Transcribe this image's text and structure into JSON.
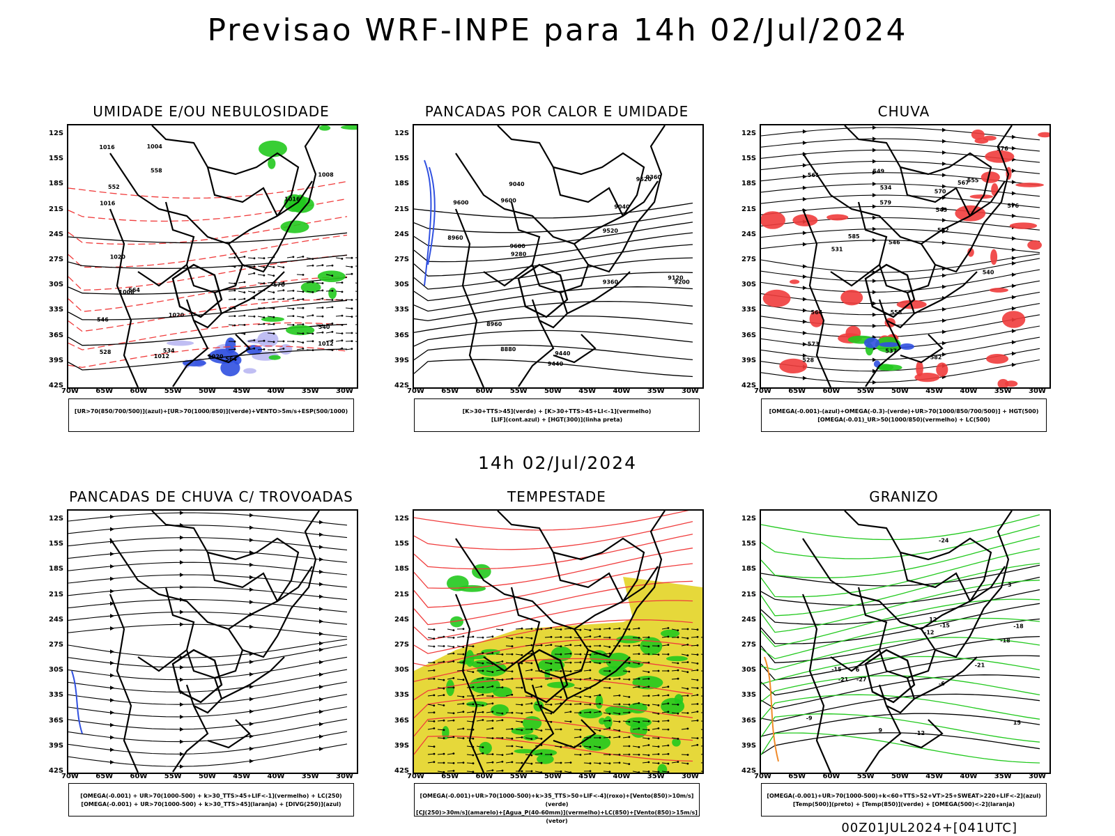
{
  "title": "Previsao WRF-INPE  para 14h 02/Jul/2024",
  "middle_label": "14h 02/Jul/2024",
  "footer_tag": "00Z01JUL2024+[041UTC]",
  "lat_ticks": [
    "12S",
    "15S",
    "18S",
    "21S",
    "24S",
    "27S",
    "30S",
    "33S",
    "36S",
    "39S",
    "42S"
  ],
  "lon_ticks": [
    "70W",
    "65W",
    "60W",
    "55W",
    "50W",
    "45W",
    "40W",
    "35W",
    "30W"
  ],
  "panels": [
    {
      "title": "UMIDADE E/OU NEBULOSIDADE",
      "legend": [
        "[UR>70(850/700/500)](azul)+[UR>70(1000/850)](verde)+VENTO>5m/s+ESP(500/1000)"
      ],
      "contour_labels": [
        "1016",
        "1020",
        "1016",
        "1020",
        "1016",
        "1012",
        "1012",
        "1008",
        "1004",
        "1008",
        "1020",
        "564",
        "570",
        "558",
        "552",
        "546",
        "540",
        "534",
        "528",
        "564"
      ]
    },
    {
      "title": "PANCADAS POR CALOR E UMIDADE",
      "legend": [
        "[K>30+TTS>45](verde) + [K>30+TTS>45+LI<-1](vermelho)",
        "[LIF](cont.azul) + [HGT(300)](linha preta)"
      ],
      "contour_labels": [
        "9600",
        "9600",
        "9520",
        "9440",
        "9520",
        "9440",
        "9360",
        "9280",
        "9360",
        "9200",
        "9120",
        "9040",
        "9040",
        "8960",
        "8960",
        "8880",
        "9600"
      ]
    },
    {
      "title": "CHUVA",
      "legend": [
        "[OMEGA(-0.001)-(azul)+OMEGA(-0.3)-(verde)+UR>70(1000/850/700/500)] + HGT(500)",
        "[OMEGA(-0.01)_UR>50(1000/850)(vermelho) + LC(500)"
      ],
      "contour_labels": [
        "582",
        "579",
        "576",
        "576",
        "573",
        "570",
        "567",
        "564",
        "561",
        "558",
        "555",
        "552",
        "549",
        "546",
        "543",
        "540",
        "537",
        "534",
        "531",
        "528",
        "585"
      ]
    },
    {
      "title": "PANCADAS DE CHUVA C/ TROVOADAS",
      "legend": [
        "[OMEGA(-0.001) + UR>70(1000-500) + k>30_TTS>45+LIF<-1](vermelho) + LC(250)",
        "[OMEGA(-0.001) + UR>70(1000-500) + k>30_TTS>45](laranja) + [DIVG(250)](azul)"
      ],
      "contour_labels": []
    },
    {
      "title": "TEMPESTADE",
      "legend": [
        "[OMEGA(-0.001)+UR>70(1000-500)+k>35_TTS>50+LIF<-4](roxo)+[Vento(850)>10m/s](verde)",
        "[CJ(250)>30m/s](amarelo)+[Agua_P(40-60mm)](vermelho)+LC(850)+[Vento(850)>15m/s](vetor)"
      ],
      "contour_labels": []
    },
    {
      "title": "GRANIZO",
      "legend": [
        "[OMEGA(-0.001)+UR>70(1000-500)+k<60+TTS>52+VT>25+SWEAT>220+LIF<-2](azul)",
        "[Temp(500)](preto) + [Temp(850)](verde) + [OMEGA(500)<-2](laranja)"
      ],
      "contour_labels": [
        "-6",
        "-9",
        "-12",
        "-15",
        "-18",
        "-21",
        "-24",
        "-27",
        "12",
        "15",
        "9",
        "6",
        "3",
        "-12",
        "-15",
        "-18",
        "-21"
      ]
    }
  ],
  "colors": {
    "blue": "#3050e0",
    "light_blue": "#b9b7f2",
    "green": "#22c91e",
    "red": "#f03c3c",
    "yellow": "#e6d83a",
    "orange": "#f08a28",
    "black": "#000000"
  }
}
